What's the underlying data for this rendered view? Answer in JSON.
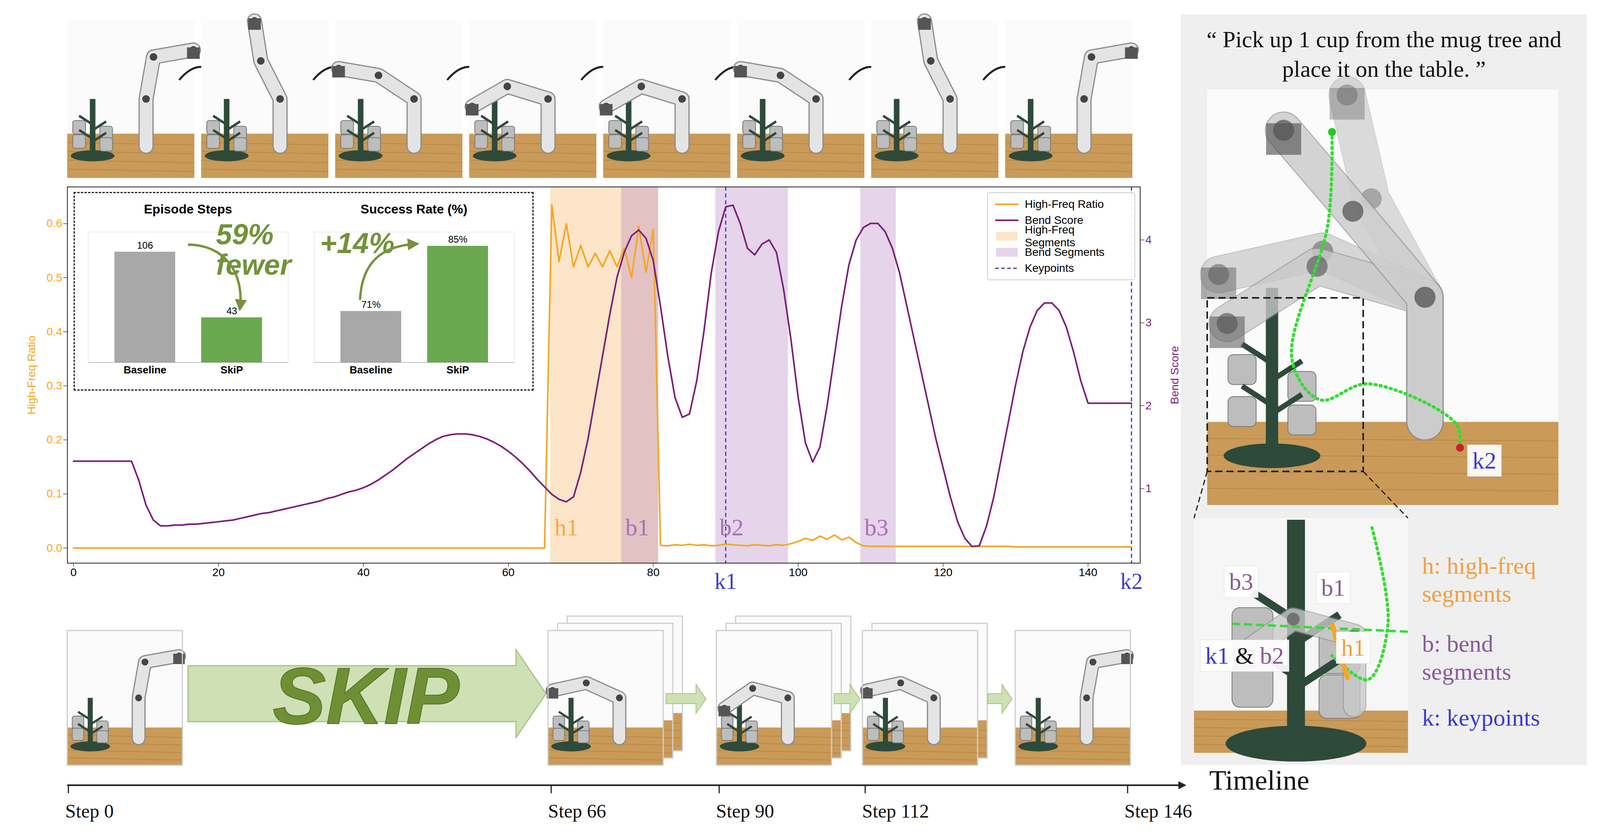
{
  "chart_data": [
    {
      "type": "line",
      "x": [
        0,
        1,
        2,
        3,
        4,
        5,
        6,
        7,
        8,
        9,
        10,
        11,
        12,
        13,
        14,
        15,
        16,
        17,
        18,
        19,
        20,
        21,
        22,
        23,
        24,
        25,
        26,
        27,
        28,
        29,
        30,
        31,
        32,
        33,
        34,
        35,
        36,
        37,
        38,
        39,
        40,
        41,
        42,
        43,
        44,
        45,
        46,
        47,
        48,
        49,
        50,
        51,
        52,
        53,
        54,
        55,
        56,
        57,
        58,
        59,
        60,
        61,
        62,
        63,
        64,
        65,
        66,
        67,
        68,
        69,
        70,
        71,
        72,
        73,
        74,
        75,
        76,
        77,
        78,
        79,
        80,
        81,
        82,
        83,
        84,
        85,
        86,
        87,
        88,
        89,
        90,
        91,
        92,
        93,
        94,
        95,
        96,
        97,
        98,
        99,
        100,
        101,
        102,
        103,
        104,
        105,
        106,
        107,
        108,
        109,
        110,
        111,
        112,
        113,
        114,
        115,
        116,
        117,
        118,
        119,
        120,
        121,
        122,
        123,
        124,
        125,
        126,
        127,
        128,
        129,
        130,
        131,
        132,
        133,
        134,
        135,
        136,
        137,
        138,
        139,
        140,
        141,
        142,
        143,
        144,
        145,
        146
      ],
      "series": [
        {
          "name": "High-Freq Ratio",
          "color": "#f5a623",
          "values": [
            0,
            0,
            0,
            0,
            0,
            0,
            0,
            0,
            0,
            0,
            0,
            0,
            0,
            0,
            0,
            0,
            0,
            0,
            0,
            0,
            0,
            0,
            0,
            0,
            0,
            0,
            0,
            0,
            0,
            0,
            0,
            0,
            0,
            0,
            0,
            0,
            0,
            0,
            0,
            0,
            0,
            0,
            0,
            0,
            0,
            0,
            0,
            0,
            0,
            0,
            0,
            0,
            0,
            0,
            0,
            0,
            0,
            0,
            0,
            0,
            0,
            0,
            0,
            0,
            0,
            0,
            0.635,
            0.53,
            0.6,
            0.52,
            0.56,
            0.52,
            0.545,
            0.52,
            0.55,
            0.52,
            0.555,
            0.5,
            0.595,
            0.51,
            0.59,
            0.005,
            0.004,
            0.006,
            0.005,
            0.007,
            0.005,
            0.006,
            0.004,
            0.005,
            0.007,
            0.006,
            0.005,
            0.004,
            0.006,
            0.005,
            0.004,
            0.006,
            0.005,
            0.008,
            0.012,
            0.018,
            0.014,
            0.022,
            0.016,
            0.024,
            0.015,
            0.02,
            0.01,
            0.004,
            0.003,
            0.003,
            0.003,
            0.003,
            0.003,
            0.003,
            0.003,
            0.003,
            0.003,
            0.003,
            0.003,
            0.003,
            0.003,
            0.003,
            0.003,
            0.003,
            0.003,
            0.003,
            0.003,
            0.003,
            0.002,
            0.002,
            0.002,
            0.002,
            0.002,
            0.002,
            0.002,
            0.002,
            0.002,
            0.002,
            0.002,
            0.002,
            0.002,
            0.002,
            0.002,
            0.002,
            0.002
          ]
        },
        {
          "name": "Bend Score",
          "color": "#7b1f7b",
          "axis": "y2",
          "values": [
            1.33,
            1.33,
            1.33,
            1.33,
            1.33,
            1.33,
            1.33,
            1.33,
            1.33,
            1.1,
            0.8,
            0.62,
            0.55,
            0.55,
            0.56,
            0.56,
            0.57,
            0.57,
            0.58,
            0.59,
            0.6,
            0.61,
            0.62,
            0.64,
            0.66,
            0.68,
            0.7,
            0.71,
            0.73,
            0.75,
            0.77,
            0.79,
            0.81,
            0.83,
            0.85,
            0.88,
            0.9,
            0.93,
            0.96,
            0.98,
            1.01,
            1.05,
            1.1,
            1.16,
            1.22,
            1.29,
            1.36,
            1.42,
            1.48,
            1.54,
            1.59,
            1.63,
            1.65,
            1.66,
            1.66,
            1.65,
            1.63,
            1.6,
            1.56,
            1.51,
            1.45,
            1.38,
            1.3,
            1.21,
            1.11,
            1.02,
            0.93,
            0.87,
            0.84,
            0.9,
            1.2,
            1.6,
            2.1,
            2.6,
            3.1,
            3.55,
            3.85,
            4.05,
            4.12,
            4.02,
            3.75,
            3.2,
            2.6,
            2.1,
            1.86,
            1.9,
            2.3,
            2.9,
            3.6,
            4.1,
            4.4,
            4.42,
            4.2,
            3.9,
            3.82,
            3.95,
            4.0,
            3.85,
            3.4,
            2.8,
            2.1,
            1.55,
            1.32,
            1.5,
            2.0,
            2.6,
            3.2,
            3.7,
            4.0,
            4.15,
            4.2,
            4.2,
            4.1,
            3.9,
            3.6,
            3.2,
            2.8,
            2.4,
            2.0,
            1.6,
            1.25,
            0.9,
            0.6,
            0.4,
            0.3,
            0.31,
            0.55,
            0.9,
            1.35,
            1.8,
            2.25,
            2.65,
            2.95,
            3.15,
            3.24,
            3.24,
            3.15,
            2.95,
            2.65,
            2.3,
            2.03,
            2.03,
            2.03,
            2.03,
            2.03,
            2.03,
            2.03
          ]
        }
      ],
      "xlim": [
        -0.85,
        147.2
      ],
      "xticks": [
        0,
        20,
        40,
        60,
        80,
        100,
        120,
        140
      ],
      "ylim": [
        -0.028,
        0.668
      ],
      "yticks": [
        {
          "value": 0,
          "label": "0.0"
        },
        {
          "value": 0.1,
          "label": "0.1"
        },
        {
          "value": 0.2,
          "label": "0.2"
        },
        {
          "value": 0.3,
          "label": "0.3"
        },
        {
          "value": 0.4,
          "label": "0.4"
        },
        {
          "value": 0.5,
          "label": "0.5"
        },
        {
          "value": 0.6,
          "label": "0.6"
        }
      ],
      "y2lim": [
        0.1,
        4.64
      ],
      "y2ticks": [
        1,
        2,
        3,
        4
      ],
      "y_label": "High-Freq Ratio",
      "y2_label": "Bend Score",
      "legend": "top-right",
      "segments": [
        {
          "name": "High-Freq Segments",
          "color": "#f5a84a",
          "items": [
            {
              "label": "h1",
              "start": 65.8,
              "end": 80.7
            }
          ]
        },
        {
          "name": "Bend Segments",
          "color": "#a970b8",
          "items": [
            {
              "label": "b1",
              "start": 75.6,
              "end": 80.7
            },
            {
              "label": "b2",
              "start": 88.6,
              "end": 98.6
            },
            {
              "label": "b3",
              "start": 108.6,
              "end": 113.5
            }
          ]
        }
      ],
      "keypoints": {
        "name": "Keypoints",
        "color": "#3a3ad6",
        "items": [
          {
            "label": "k1",
            "x": 90
          },
          {
            "label": "k2",
            "x": 146
          }
        ]
      }
    },
    {
      "type": "bar",
      "title": "Episode Steps",
      "categories": [
        "Baseline",
        "SkiP"
      ],
      "values": [
        106,
        43
      ],
      "colors": [
        "#a8a8a8",
        "#6aa84f"
      ],
      "ylim": [
        0,
        125
      ],
      "data_labels": true,
      "tick_labels": "x",
      "annotation": "59% fewer"
    },
    {
      "type": "bar",
      "title": "Success Rate (%)",
      "categories": [
        "Baseline",
        "SkiP"
      ],
      "values": [
        71,
        85
      ],
      "value_labels": [
        "71%",
        "85%"
      ],
      "colors": [
        "#a8a8a8",
        "#6aa84f"
      ],
      "ylim": [
        60,
        88
      ],
      "data_labels": true,
      "tick_labels": "x",
      "annotation": "+14%"
    }
  ],
  "figure": {
    "instruction": "“ Pick up 1 cup from the mug tree and place it on the table. ”",
    "banner": "SKIP",
    "timeline": {
      "label": "Timeline",
      "steps": [
        "Step 0",
        "Step 66",
        "Step 90",
        "Step 112",
        "Step 146"
      ]
    },
    "panel_labels": [
      {
        "parts": [
          {
            "text": "k2",
            "color": "#3a3ad6"
          }
        ]
      },
      {
        "parts": [
          {
            "text": "b3",
            "color": "#8a5a9a"
          }
        ]
      },
      {
        "parts": [
          {
            "text": "b1",
            "color": "#8a5a9a"
          }
        ]
      },
      {
        "parts": [
          {
            "text": "k1",
            "color": "#3a3ad6"
          },
          {
            "text": " & ",
            "color": "#111111"
          },
          {
            "text": "b2",
            "color": "#8a5a9a"
          }
        ]
      },
      {
        "parts": [
          {
            "text": "h1",
            "color": "#f0a040"
          }
        ]
      }
    ],
    "panel_legend": [
      {
        "text": "h: high-freq segments",
        "color": "#f0a040"
      },
      {
        "text": "b: bend segments",
        "color": "#8a5a9a"
      },
      {
        "text": "k: keypoints",
        "color": "#3a3ad6"
      }
    ]
  }
}
